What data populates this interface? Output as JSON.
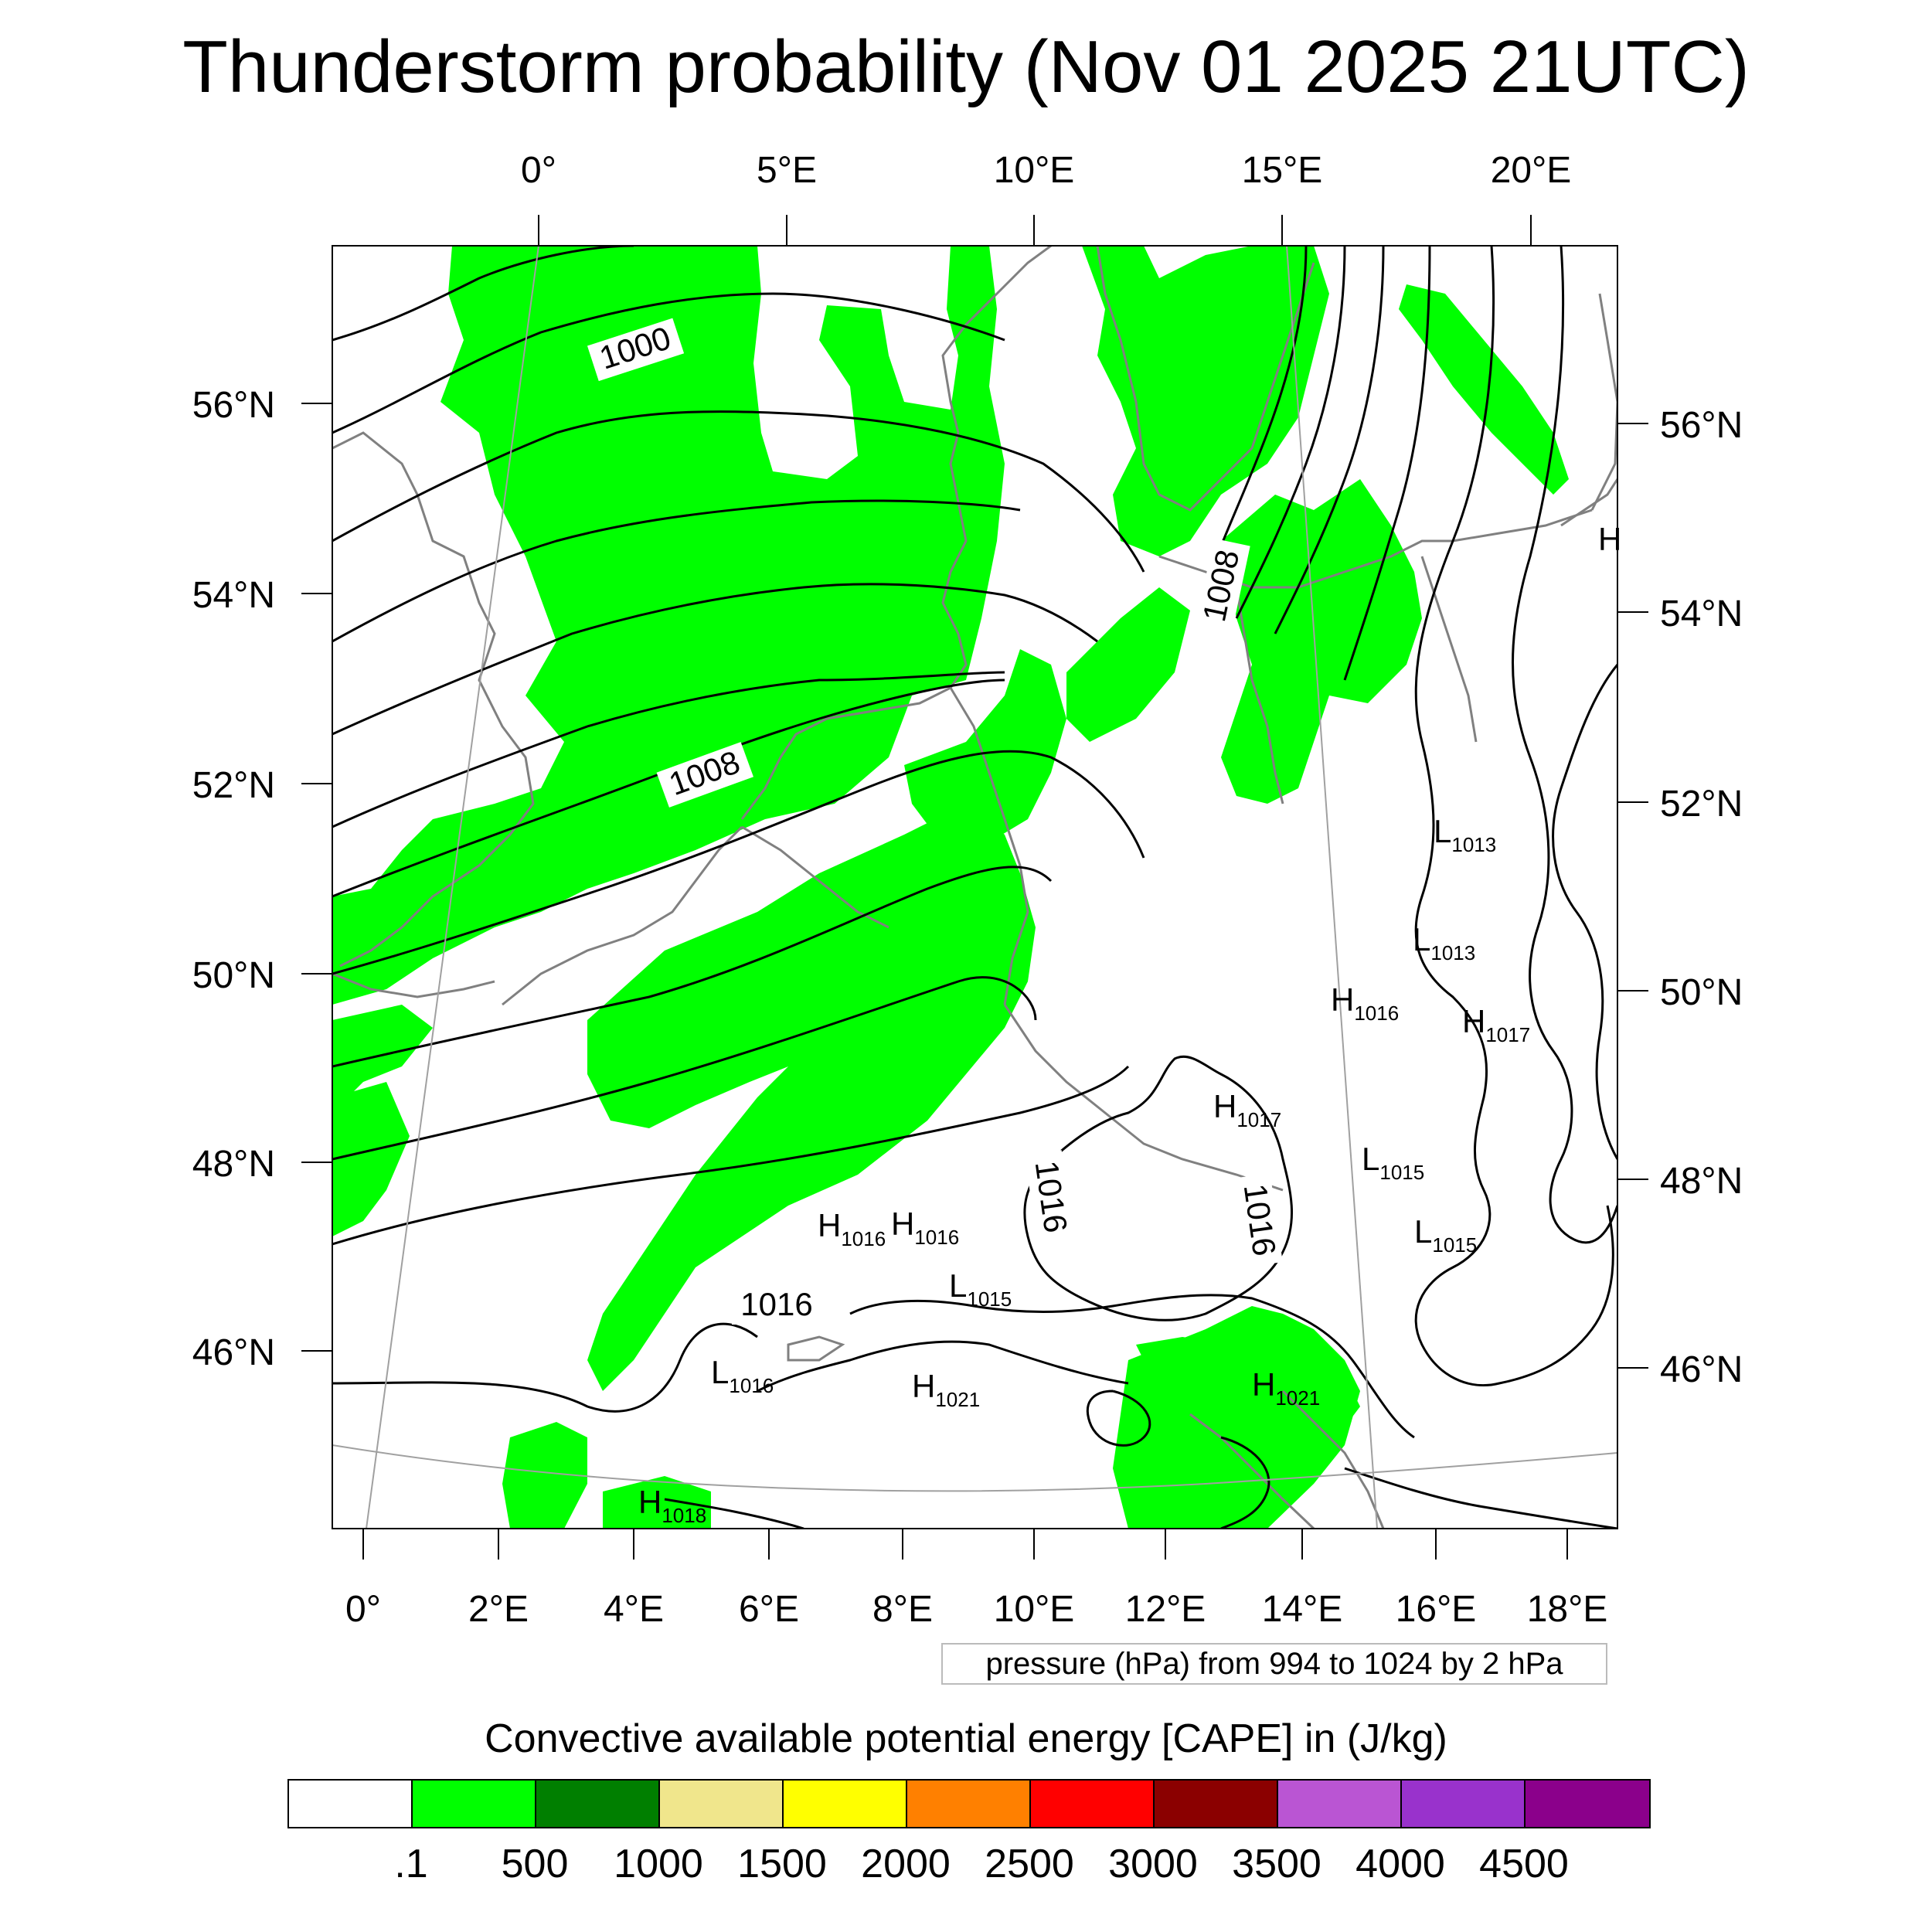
{
  "title": "Thunderstorm probability (Nov 01 2025 21UTC)",
  "top_lon_labels": [
    "0°",
    "5°E",
    "10°E",
    "15°E",
    "20°E"
  ],
  "bottom_lon_labels": [
    "0°",
    "2°E",
    "4°E",
    "6°E",
    "8°E",
    "10°E",
    "12°E",
    "14°E",
    "16°E",
    "18°E"
  ],
  "left_lat_labels": [
    "56°N",
    "54°N",
    "52°N",
    "50°N",
    "48°N",
    "46°N"
  ],
  "right_lat_labels": [
    "56°N",
    "54°N",
    "52°N",
    "50°N",
    "48°N",
    "46°N"
  ],
  "contour_labels": [
    "1000",
    "1008",
    "1008",
    "1016",
    "1016",
    "1016"
  ],
  "pressure_centers": [
    {
      "letter": "L",
      "value": "1013"
    },
    {
      "letter": "L",
      "value": "1013"
    },
    {
      "letter": "H",
      "value": "1016"
    },
    {
      "letter": "H",
      "value": "1017"
    },
    {
      "letter": "H",
      "value": "1017"
    },
    {
      "letter": "L",
      "value": "1015"
    },
    {
      "letter": "L",
      "value": "1015"
    },
    {
      "letter": "H",
      "value": "1016"
    },
    {
      "letter": "H",
      "value": "1016"
    },
    {
      "letter": "L",
      "value": "1015"
    },
    {
      "letter": "L",
      "value": "1016"
    },
    {
      "letter": "H",
      "value": "1021"
    },
    {
      "letter": "H",
      "value": "1021"
    },
    {
      "letter": "H",
      "value": "1018"
    },
    {
      "letter": "H",
      "value": ""
    }
  ],
  "contour_note": "pressure (hPa) from 994 to 1024 by 2 hPa",
  "colorbar": {
    "title": "Convective available potential energy [CAPE] in (J/kg)",
    "colors": [
      "#ffffff",
      "#00ff00",
      "#007f00",
      "#f0e68c",
      "#ffff00",
      "#ff8000",
      "#ff0000",
      "#8b0000",
      "#ba55d3",
      "#9932cc",
      "#8b008b"
    ],
    "labels": [
      ".1",
      "500",
      "1000",
      "1500",
      "2000",
      "2500",
      "3000",
      "3500",
      "4000",
      "4500"
    ]
  },
  "colors": {
    "cape_fill": "#00ff00",
    "isobar": "#000000",
    "coast": "#808080",
    "grid": "#a0a0a0"
  }
}
